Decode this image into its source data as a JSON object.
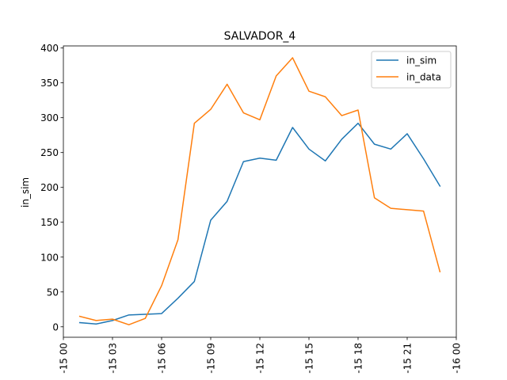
{
  "chart_data": {
    "type": "line",
    "title": "SALVADOR_4",
    "xlabel": "",
    "ylabel": "in_sim",
    "x": [
      "15 01",
      "15 02",
      "15 03",
      "15 04",
      "15 05",
      "15 06",
      "15 07",
      "15 08",
      "15 09",
      "15 10",
      "15 11",
      "15 12",
      "15 13",
      "15 14",
      "15 15",
      "15 16",
      "15 17",
      "15 18",
      "15 19",
      "15 20",
      "15 21",
      "15 22",
      "15 23"
    ],
    "x_hours": [
      1,
      2,
      3,
      4,
      5,
      6,
      7,
      8,
      9,
      10,
      11,
      12,
      13,
      14,
      15,
      16,
      17,
      18,
      19,
      20,
      21,
      22,
      23
    ],
    "xlim": [
      0,
      24
    ],
    "ylim": [
      -15,
      403
    ],
    "x_ticks": [
      {
        "hour": 0,
        "label": "-15 00"
      },
      {
        "hour": 3,
        "label": "-15 03"
      },
      {
        "hour": 6,
        "label": "-15 06"
      },
      {
        "hour": 9,
        "label": "-15 09"
      },
      {
        "hour": 12,
        "label": "-15 12"
      },
      {
        "hour": 15,
        "label": "-15 15"
      },
      {
        "hour": 18,
        "label": "-15 18"
      },
      {
        "hour": 21,
        "label": "-15 21"
      },
      {
        "hour": 24,
        "label": "-16 00"
      }
    ],
    "y_ticks": [
      0,
      50,
      100,
      150,
      200,
      250,
      300,
      350,
      400
    ],
    "series": [
      {
        "name": "in_sim",
        "color": "#1f77b4",
        "values": [
          6,
          4,
          9,
          17,
          18,
          19,
          41,
          65,
          153,
          180,
          237,
          242,
          239,
          286,
          255,
          238,
          269,
          292,
          262,
          255,
          277,
          241,
          202
        ]
      },
      {
        "name": "in_data",
        "color": "#ff7f0e",
        "values": [
          15,
          9,
          11,
          3,
          12,
          59,
          125,
          292,
          312,
          348,
          307,
          297,
          360,
          386,
          338,
          330,
          303,
          311,
          185,
          170,
          168,
          166,
          79
        ]
      }
    ],
    "legend_position": "top-right",
    "grid": false
  }
}
